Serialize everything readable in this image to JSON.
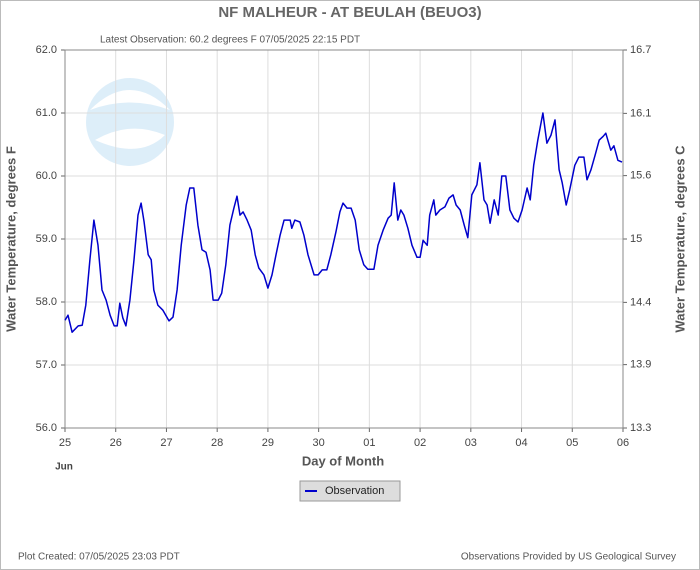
{
  "chart_data": {
    "type": "line",
    "title": "NF MALHEUR - AT BEULAH  (BEUO3)",
    "subtitle": "Latest Observation: 60.2 degrees F 07/05/2025 22:15 PDT",
    "x_label": "Day of Month",
    "x_month": "Jun",
    "y_label": "Water Temperature, degrees F",
    "y2_label": "Water Temperature, degrees C",
    "footer_left": "Plot Created: 07/05/2025 23:03 PDT",
    "footer_right": "Observations Provided by US Geological Survey",
    "grid": true,
    "legend": "bottom",
    "xlim": [
      0,
      11
    ],
    "xticks": [
      {
        "value": 0,
        "label": "25"
      },
      {
        "value": 1,
        "label": "26"
      },
      {
        "value": 2,
        "label": "27"
      },
      {
        "value": 3,
        "label": "28"
      },
      {
        "value": 4,
        "label": "29"
      },
      {
        "value": 5,
        "label": "30"
      },
      {
        "value": 6,
        "label": "01"
      },
      {
        "value": 7,
        "label": "02"
      },
      {
        "value": 8,
        "label": "03"
      },
      {
        "value": 9,
        "label": "04"
      },
      {
        "value": 10,
        "label": "05"
      },
      {
        "value": 11,
        "label": "06"
      }
    ],
    "ylim": [
      56,
      62
    ],
    "yticks": [
      {
        "value": 56,
        "label": "56.0"
      },
      {
        "value": 57,
        "label": "57.0"
      },
      {
        "value": 58,
        "label": "58.0"
      },
      {
        "value": 59,
        "label": "59.0"
      },
      {
        "value": 60,
        "label": "60.0"
      },
      {
        "value": 61,
        "label": "61.0"
      },
      {
        "value": 62,
        "label": "62.0"
      }
    ],
    "y2lim": [
      13.33,
      16.67
    ],
    "y2ticks": [
      {
        "value": 13.33,
        "label": "13.3"
      },
      {
        "value": 13.89,
        "label": "13.9"
      },
      {
        "value": 14.44,
        "label": "14.4"
      },
      15,
      {
        "value": 15.56,
        "label": "15.6"
      },
      {
        "value": 16.11,
        "label": "16.1"
      },
      {
        "value": 16.67,
        "label": "16.7"
      }
    ],
    "x": [
      0,
      0.06,
      0.14,
      0.26,
      0.34,
      0.41,
      0.49,
      0.57,
      0.65,
      0.73,
      0.81,
      0.89,
      0.97,
      1.03,
      1.08,
      1.14,
      1.2,
      1.28,
      1.36,
      1.44,
      1.5,
      1.56,
      1.64,
      1.7,
      1.75,
      1.83,
      1.93,
      2.05,
      2.13,
      2.21,
      2.29,
      2.39,
      2.46,
      2.54,
      2.62,
      2.7,
      2.78,
      2.86,
      2.92,
      3.02,
      3.09,
      3.17,
      3.25,
      3.33,
      3.39,
      3.45,
      3.51,
      3.59,
      3.67,
      3.75,
      3.82,
      3.92,
      4,
      4.08,
      4.16,
      4.24,
      4.32,
      4.44,
      4.47,
      4.53,
      4.63,
      4.71,
      4.79,
      4.91,
      4.99,
      5.07,
      5.16,
      5.24,
      5.34,
      5.42,
      5.48,
      5.56,
      5.64,
      5.72,
      5.8,
      5.89,
      5.97,
      6.09,
      6.17,
      6.27,
      6.37,
      6.43,
      6.49,
      6.56,
      6.62,
      6.68,
      6.76,
      6.84,
      6.94,
      7,
      7.06,
      7.14,
      7.19,
      7.27,
      7.31,
      7.39,
      7.49,
      7.57,
      7.65,
      7.71,
      7.79,
      7.87,
      7.94,
      8.02,
      8.12,
      8.18,
      8.26,
      8.32,
      8.38,
      8.46,
      8.54,
      8.61,
      8.69,
      8.77,
      8.85,
      8.93,
      9.01,
      9.11,
      9.17,
      9.24,
      9.32,
      9.42,
      9.5,
      9.58,
      9.66,
      9.74,
      9.8,
      9.88,
      9.95,
      10.05,
      10.13,
      10.23,
      10.29,
      10.37,
      10.45,
      10.53,
      10.61,
      10.66,
      10.7,
      10.76,
      10.82,
      10.9,
      10.98
    ],
    "series": [
      {
        "name": "Observation",
        "color": "#0000cc",
        "values": [
          57.71,
          57.79,
          57.52,
          57.62,
          57.63,
          57.95,
          58.67,
          59.3,
          58.9,
          58.19,
          58.03,
          57.79,
          57.62,
          57.62,
          57.98,
          57.75,
          57.62,
          58.03,
          58.67,
          59.38,
          59.57,
          59.27,
          58.75,
          58.67,
          58.19,
          57.95,
          57.87,
          57.7,
          57.76,
          58.19,
          58.9,
          59.54,
          59.81,
          59.81,
          59.22,
          58.83,
          58.79,
          58.51,
          58.03,
          58.03,
          58.14,
          58.59,
          59.22,
          59.49,
          59.68,
          59.38,
          59.43,
          59.3,
          59.14,
          58.75,
          58.54,
          58.43,
          58.22,
          58.43,
          58.75,
          59.06,
          59.3,
          59.3,
          59.17,
          59.3,
          59.27,
          59.06,
          58.75,
          58.43,
          58.43,
          58.51,
          58.51,
          58.75,
          59.11,
          59.43,
          59.57,
          59.49,
          59.49,
          59.3,
          58.83,
          58.59,
          58.52,
          58.52,
          58.9,
          59.14,
          59.33,
          59.38,
          59.89,
          59.3,
          59.46,
          59.38,
          59.17,
          58.9,
          58.71,
          58.71,
          58.98,
          58.9,
          59.38,
          59.62,
          59.38,
          59.46,
          59.51,
          59.65,
          59.7,
          59.54,
          59.46,
          59.22,
          59.02,
          59.7,
          59.86,
          60.21,
          59.62,
          59.54,
          59.25,
          59.62,
          59.38,
          60,
          60,
          59.46,
          59.33,
          59.27,
          59.46,
          59.81,
          59.62,
          60.17,
          60.57,
          61,
          60.52,
          60.65,
          60.89,
          60.1,
          59.9,
          59.54,
          59.78,
          60.17,
          60.3,
          60.3,
          59.94,
          60.1,
          60.33,
          60.57,
          60.63,
          60.68,
          60.57,
          60.41,
          60.48,
          60.25,
          60.22
        ]
      }
    ]
  }
}
